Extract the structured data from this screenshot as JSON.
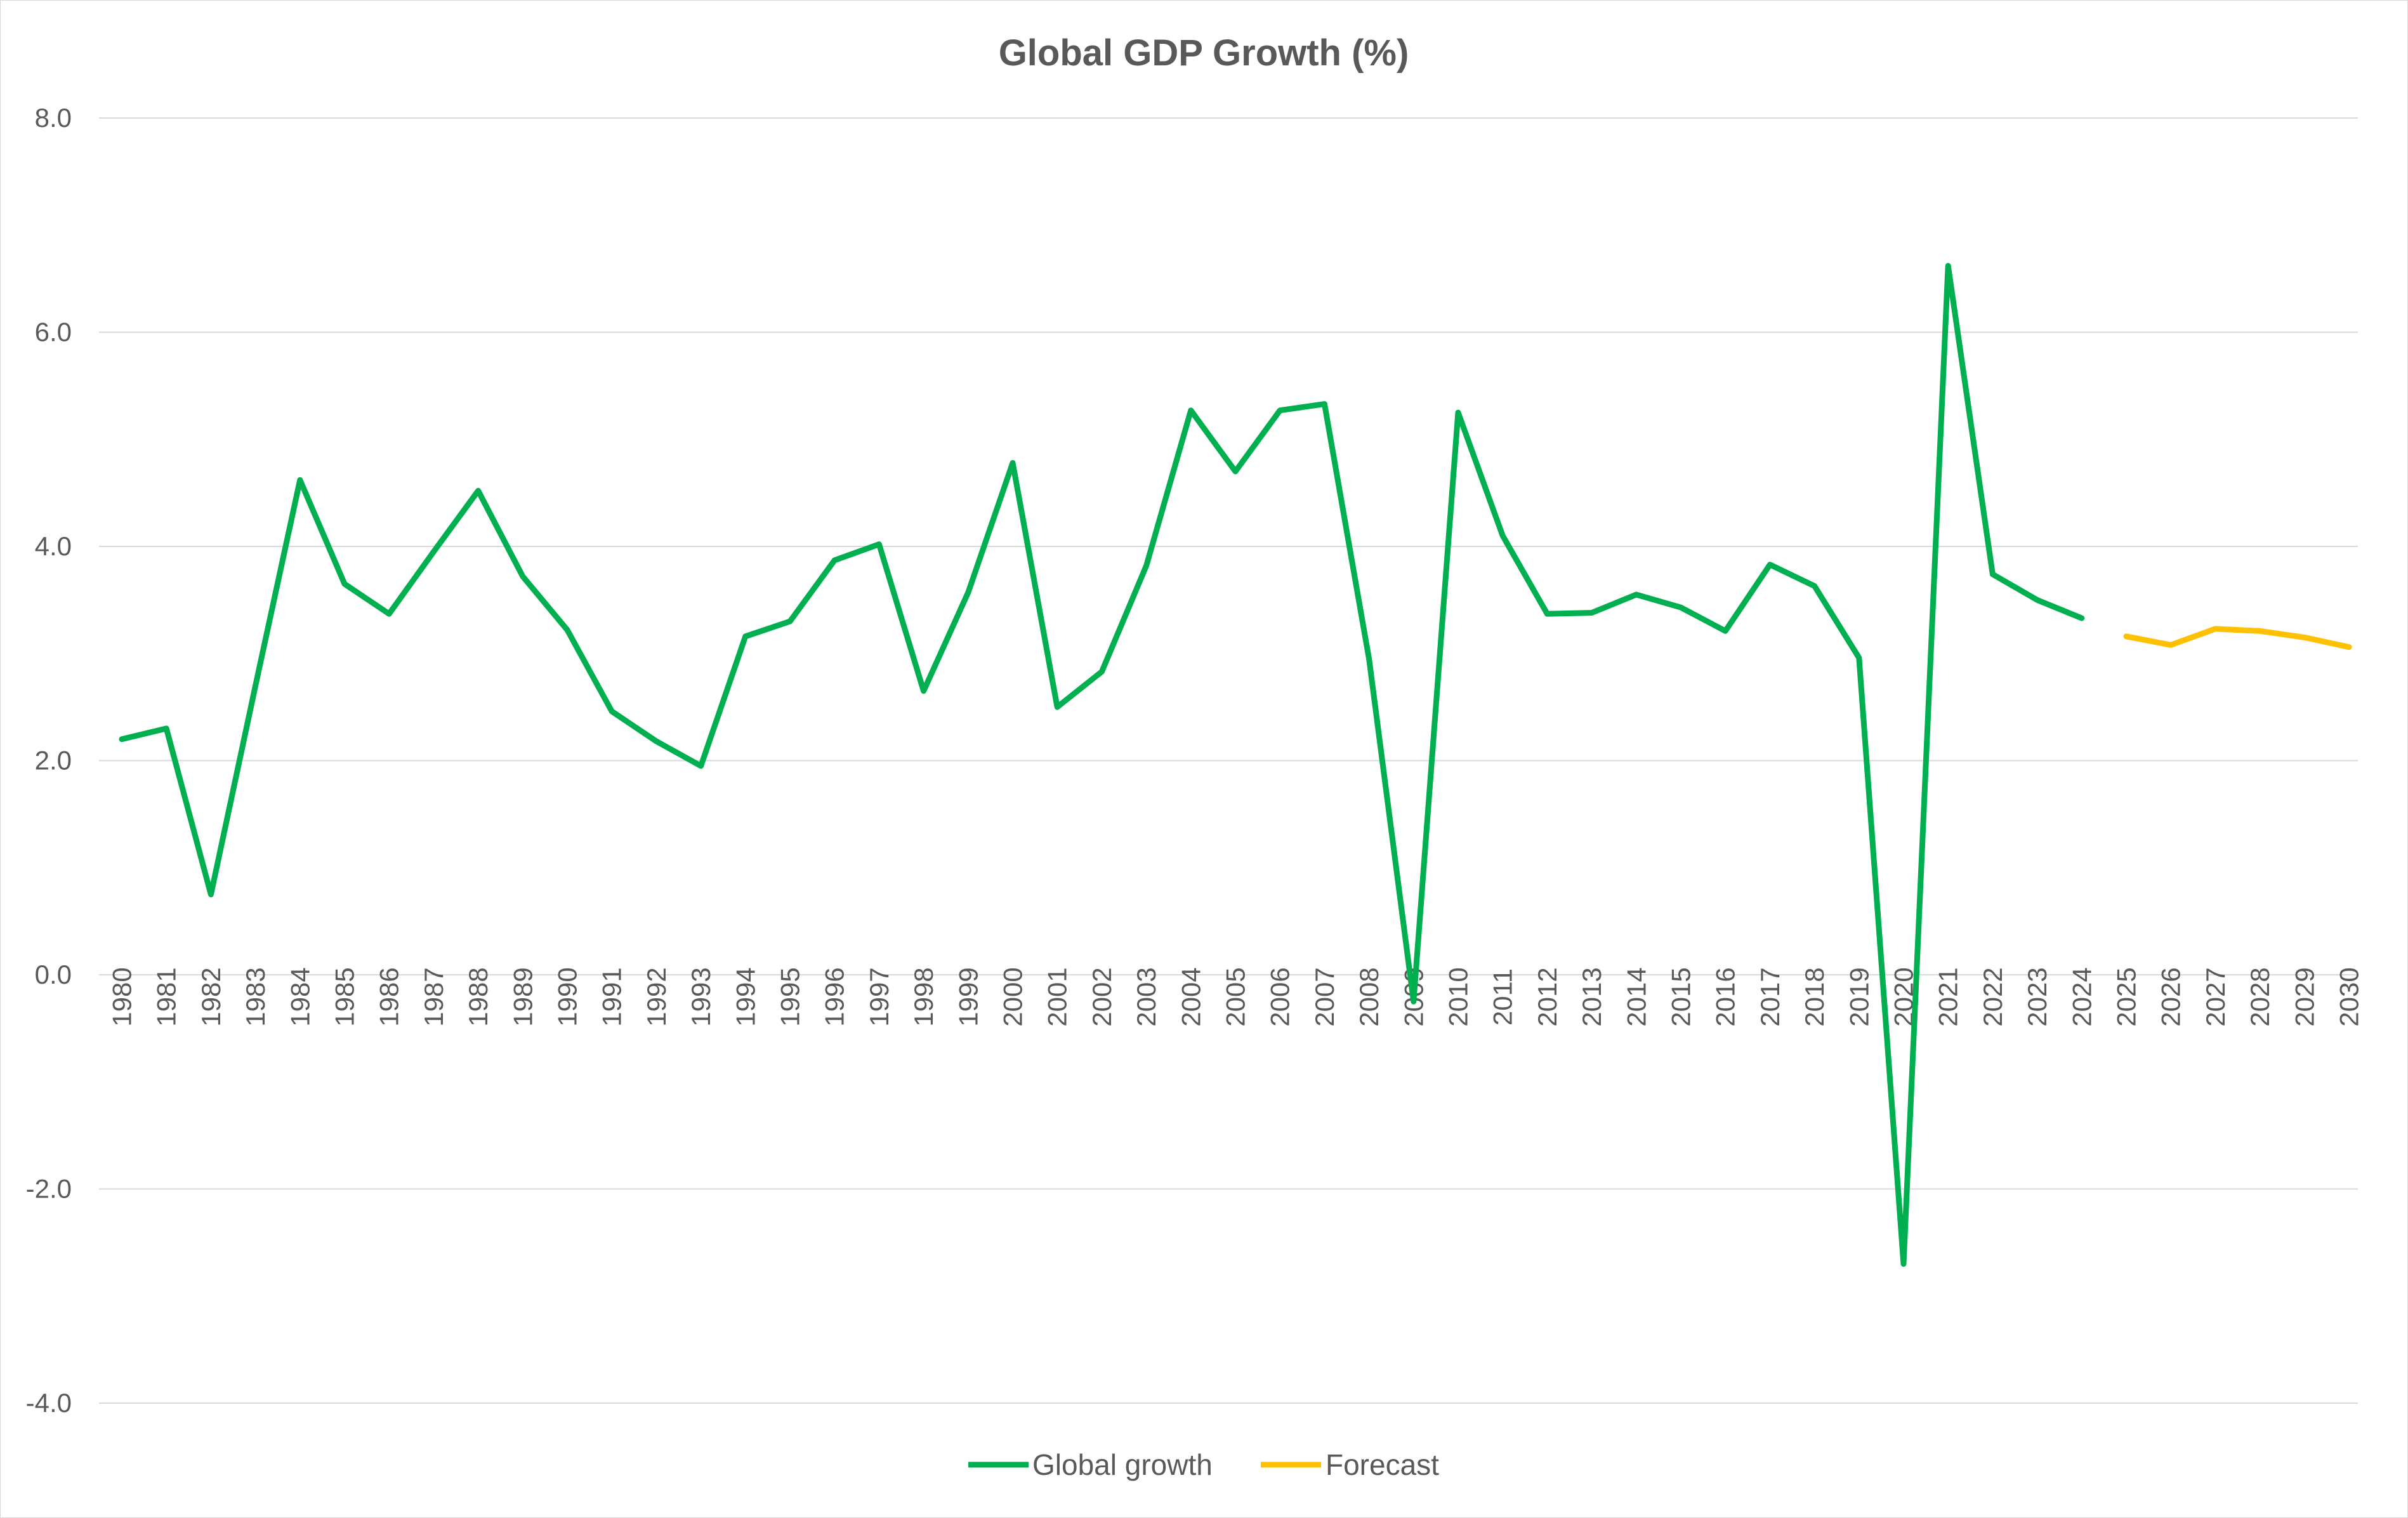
{
  "chart_data": {
    "type": "line",
    "title": "Global GDP Growth (%)",
    "xlabel": "",
    "ylabel": "",
    "ylim": [
      -4.0,
      8.0
    ],
    "yticks": [
      "8.0",
      "6.0",
      "4.0",
      "2.0",
      "0.0",
      "-2.0",
      "-4.0"
    ],
    "ytick_values": [
      8,
      6,
      4,
      2,
      0,
      -2,
      -4
    ],
    "grid": true,
    "legend_position": "bottom",
    "categories": [
      "1980",
      "1981",
      "1982",
      "1983",
      "1984",
      "1985",
      "1986",
      "1987",
      "1988",
      "1989",
      "1990",
      "1991",
      "1992",
      "1993",
      "1994",
      "1995",
      "1996",
      "1997",
      "1998",
      "1999",
      "2000",
      "2001",
      "2002",
      "2003",
      "2004",
      "2005",
      "2006",
      "2007",
      "2008",
      "2009",
      "2010",
      "2011",
      "2012",
      "2013",
      "2014",
      "2015",
      "2016",
      "2017",
      "2018",
      "2019",
      "2020",
      "2021",
      "2022",
      "2023",
      "2024",
      "2025",
      "2026",
      "2027",
      "2028",
      "2029",
      "2030"
    ],
    "series": [
      {
        "name": "Global growth",
        "color": "#00b050",
        "values": [
          2.2,
          2.3,
          0.75,
          2.7,
          4.62,
          3.65,
          3.37,
          3.95,
          4.52,
          3.72,
          3.22,
          2.46,
          2.18,
          1.95,
          3.16,
          3.3,
          3.87,
          4.02,
          2.65,
          3.57,
          4.78,
          2.5,
          2.83,
          3.82,
          5.27,
          4.7,
          5.27,
          5.33,
          2.95,
          -0.25,
          5.25,
          4.1,
          3.37,
          3.38,
          3.55,
          3.43,
          3.21,
          3.83,
          3.63,
          2.96,
          -2.7,
          6.62,
          3.74,
          3.5,
          3.33,
          null,
          null,
          null,
          null,
          null,
          null
        ]
      },
      {
        "name": "Forecast",
        "color": "#ffc000",
        "values": [
          null,
          null,
          null,
          null,
          null,
          null,
          null,
          null,
          null,
          null,
          null,
          null,
          null,
          null,
          null,
          null,
          null,
          null,
          null,
          null,
          null,
          null,
          null,
          null,
          null,
          null,
          null,
          null,
          null,
          null,
          null,
          null,
          null,
          null,
          null,
          null,
          null,
          null,
          null,
          null,
          null,
          null,
          null,
          null,
          null,
          3.16,
          3.08,
          3.23,
          3.21,
          3.15,
          3.06
        ]
      }
    ]
  }
}
